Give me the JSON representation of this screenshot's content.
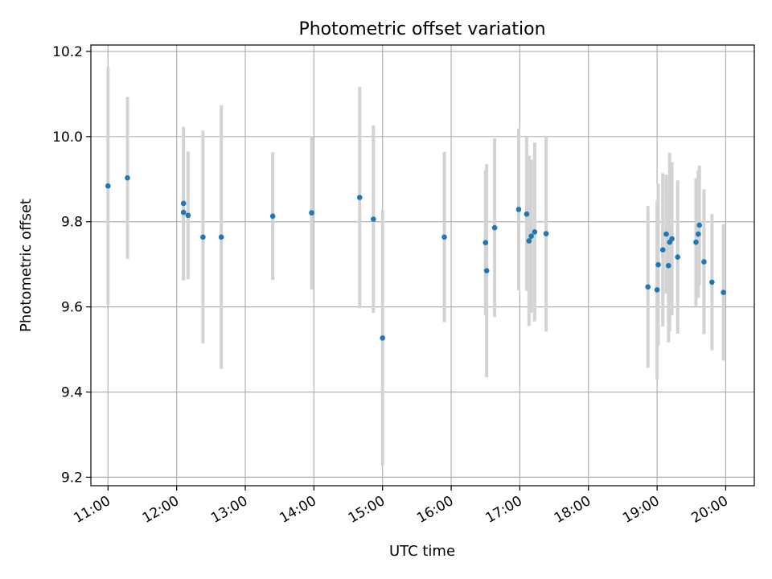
{
  "chart_data": {
    "type": "scatter",
    "title": "Photometric offset variation",
    "xlabel": "UTC time",
    "ylabel": "Photometric offset",
    "x_unit": "UTC hh:mm",
    "xlim": [
      "10:45",
      "20:25"
    ],
    "ylim": [
      9.18,
      10.215
    ],
    "x_ticks": [
      "11:00",
      "12:00",
      "13:00",
      "14:00",
      "15:00",
      "16:00",
      "17:00",
      "18:00",
      "19:00",
      "20:00"
    ],
    "y_ticks": [
      "9.2",
      "9.4",
      "9.6",
      "9.8",
      "10.0",
      "10.2"
    ],
    "grid": true,
    "legend": "none",
    "colors": {
      "point": "#1f77b4",
      "errorbar": "#d3d3d3",
      "grid": "#b0b0b0",
      "axes": "#000000"
    },
    "series": [
      {
        "marker": "point",
        "points": [
          {
            "x": "11:00",
            "y": 9.884,
            "err": 0.28
          },
          {
            "x": "11:17",
            "y": 9.903,
            "err": 0.19
          },
          {
            "x": "12:06",
            "y": 9.843,
            "err": 0.18
          },
          {
            "x": "12:06",
            "y": 9.822,
            "err": 0.16
          },
          {
            "x": "12:10",
            "y": 9.815,
            "err": 0.15
          },
          {
            "x": "12:23",
            "y": 9.764,
            "err": 0.25
          },
          {
            "x": "12:39",
            "y": 9.764,
            "err": 0.31
          },
          {
            "x": "13:24",
            "y": 9.813,
            "err": 0.15
          },
          {
            "x": "13:58",
            "y": 9.821,
            "err": 0.18
          },
          {
            "x": "14:40",
            "y": 9.857,
            "err": 0.26
          },
          {
            "x": "14:52",
            "y": 9.806,
            "err": 0.22
          },
          {
            "x": "15:00",
            "y": 9.527,
            "err": 0.3
          },
          {
            "x": "15:54",
            "y": 9.764,
            "err": 0.2
          },
          {
            "x": "16:30",
            "y": 9.751,
            "err": 0.17
          },
          {
            "x": "16:31",
            "y": 9.685,
            "err": 0.25
          },
          {
            "x": "16:38",
            "y": 9.786,
            "err": 0.21
          },
          {
            "x": "16:59",
            "y": 9.829,
            "err": 0.19
          },
          {
            "x": "17:06",
            "y": 9.818,
            "err": 0.18
          },
          {
            "x": "17:08",
            "y": 9.755,
            "err": 0.2
          },
          {
            "x": "17:10",
            "y": 9.766,
            "err": 0.18
          },
          {
            "x": "17:13",
            "y": 9.776,
            "err": 0.21
          },
          {
            "x": "17:23",
            "y": 9.772,
            "err": 0.23
          },
          {
            "x": "18:52",
            "y": 9.647,
            "err": 0.19
          },
          {
            "x": "19:00",
            "y": 9.64,
            "err": 0.21
          },
          {
            "x": "19:01",
            "y": 9.699,
            "err": 0.19
          },
          {
            "x": "19:05",
            "y": 9.734,
            "err": 0.18
          },
          {
            "x": "19:08",
            "y": 9.771,
            "err": 0.14
          },
          {
            "x": "19:10",
            "y": 9.697,
            "err": 0.18
          },
          {
            "x": "19:11",
            "y": 9.752,
            "err": 0.21
          },
          {
            "x": "19:13",
            "y": 9.76,
            "err": 0.18
          },
          {
            "x": "19:18",
            "y": 9.717,
            "err": 0.18
          },
          {
            "x": "19:34",
            "y": 9.752,
            "err": 0.15
          },
          {
            "x": "19:36",
            "y": 9.771,
            "err": 0.15
          },
          {
            "x": "19:37",
            "y": 9.792,
            "err": 0.14
          },
          {
            "x": "19:41",
            "y": 9.706,
            "err": 0.17
          },
          {
            "x": "19:48",
            "y": 9.658,
            "err": 0.16
          },
          {
            "x": "19:58",
            "y": 9.634,
            "err": 0.16
          }
        ]
      }
    ]
  }
}
